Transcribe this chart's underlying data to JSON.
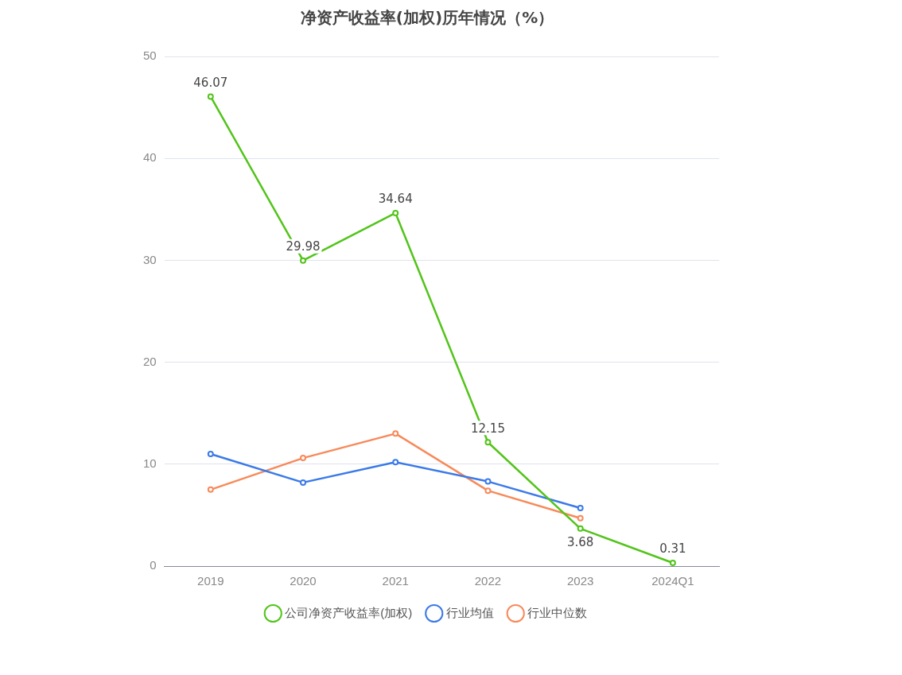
{
  "chart_data": {
    "type": "line",
    "title": "净资产收益率(加权)历年情况（%）",
    "categories": [
      "2019",
      "2020",
      "2021",
      "2022",
      "2023",
      "2024Q1"
    ],
    "series": [
      {
        "name": "公司净资产收益率(加权)",
        "color": "#52c41a",
        "values": [
          46.07,
          29.98,
          34.64,
          12.15,
          3.68,
          0.31
        ],
        "value_labels": [
          "46.07",
          "29.98",
          "34.64",
          "12.15",
          "3.68",
          "0.31"
        ]
      },
      {
        "name": "行业均值",
        "color": "#3b7ae8",
        "values": [
          11.0,
          8.2,
          10.2,
          8.3,
          5.7,
          null
        ]
      },
      {
        "name": "行业中位数",
        "color": "#f78a5a",
        "values": [
          7.5,
          10.6,
          13.0,
          7.4,
          4.7,
          null
        ]
      }
    ],
    "ylim": [
      0,
      50
    ],
    "yticks": [
      0,
      10,
      20,
      30,
      40,
      50
    ],
    "grid": "y",
    "legend": "bottom",
    "marker": "circle",
    "line_style": "solid"
  }
}
